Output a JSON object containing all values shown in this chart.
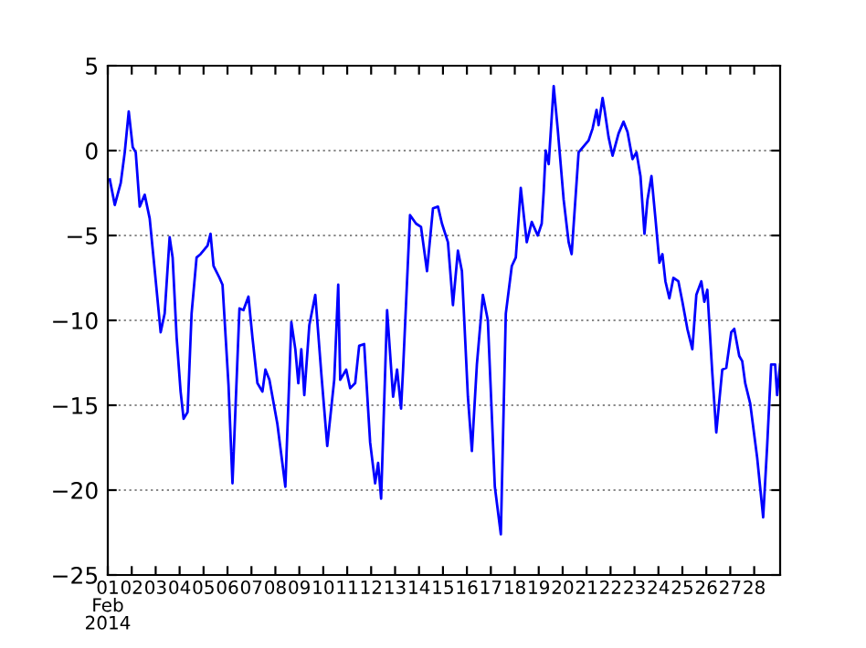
{
  "chart_data": {
    "type": "line",
    "x": [
      "2014-02-01T02:00",
      "2014-02-01T07:00",
      "2014-02-01T13:00",
      "2014-02-01T17:00",
      "2014-02-01T21:00",
      "2014-02-02T01:00",
      "2014-02-02T04:00",
      "2014-02-02T08:00",
      "2014-02-02T13:00",
      "2014-02-02T18:00",
      "2014-02-02T22:00",
      "2014-02-03T05:00",
      "2014-02-03T09:00",
      "2014-02-03T14:00",
      "2014-02-03T17:00",
      "2014-02-03T21:00",
      "2014-02-04T01:00",
      "2014-02-04T04:00",
      "2014-02-04T08:00",
      "2014-02-04T12:00",
      "2014-02-04T17:00",
      "2014-02-04T21:00",
      "2014-02-05T04:00",
      "2014-02-05T07:00",
      "2014-02-05T10:00",
      "2014-02-05T16:00",
      "2014-02-05T19:00",
      "2014-02-06T01:00",
      "2014-02-06T05:00",
      "2014-02-06T12:00",
      "2014-02-06T16:00",
      "2014-02-06T21:00",
      "2014-02-07T01:00",
      "2014-02-07T06:00",
      "2014-02-07T11:00",
      "2014-02-07T14:00",
      "2014-02-07T18:00",
      "2014-02-08T02:00",
      "2014-02-08T10:00",
      "2014-02-08T16:00",
      "2014-02-08T20:00",
      "2014-02-08T23:00",
      "2014-02-09T02:00",
      "2014-02-09T05:00",
      "2014-02-09T10:00",
      "2014-02-09T16:00",
      "2014-02-09T22:00",
      "2014-02-10T04:00",
      "2014-02-10T11:00",
      "2014-02-10T15:00",
      "2014-02-10T17:00",
      "2014-02-10T23:00",
      "2014-02-11T03:00",
      "2014-02-11T08:00",
      "2014-02-11T12:00",
      "2014-02-11T17:00",
      "2014-02-11T23:00",
      "2014-02-12T04:00",
      "2014-02-12T07:00",
      "2014-02-12T10:00",
      "2014-02-12T16:00",
      "2014-02-12T22:00",
      "2014-02-13T02:00",
      "2014-02-13T06:00",
      "2014-02-13T08:00",
      "2014-02-13T15:00",
      "2014-02-13T21:00",
      "2014-02-14T02:00",
      "2014-02-14T08:00",
      "2014-02-14T14:00",
      "2014-02-14T19:00",
      "2014-02-14T23:00",
      "2014-02-15T05:00",
      "2014-02-15T10:00",
      "2014-02-15T15:00",
      "2014-02-15T19:00",
      "2014-02-16T01:00",
      "2014-02-16T05:00",
      "2014-02-16T10:00",
      "2014-02-16T16:00",
      "2014-02-16T21:00",
      "2014-02-17T04:00",
      "2014-02-17T10:00",
      "2014-02-17T15:00",
      "2014-02-17T21:00",
      "2014-02-18T01:00",
      "2014-02-18T06:00",
      "2014-02-18T12:00",
      "2014-02-18T17:00",
      "2014-02-18T23:00",
      "2014-02-19T03:00",
      "2014-02-19T05:00",
      "2014-02-19T07:00",
      "2014-02-19T10:00",
      "2014-02-19T15:00",
      "2014-02-19T19:00",
      "2014-02-20T01:00",
      "2014-02-20T06:00",
      "2014-02-20T09:00",
      "2014-02-20T16:00",
      "2014-02-21T02:00",
      "2014-02-21T06:00",
      "2014-02-21T10:00",
      "2014-02-21T12:00",
      "2014-02-21T16:00",
      "2014-02-21T18:00",
      "2014-02-21T22:00",
      "2014-02-22T02:00",
      "2014-02-22T08:00",
      "2014-02-22T13:00",
      "2014-02-22T17:00",
      "2014-02-22T22:00",
      "2014-02-23T02:00",
      "2014-02-23T06:00",
      "2014-02-23T10:00",
      "2014-02-23T13:00",
      "2014-02-23T17:00",
      "2014-02-23T21:00",
      "2014-02-24T01:00",
      "2014-02-24T04:00",
      "2014-02-24T07:00",
      "2014-02-24T11:00",
      "2014-02-24T15:00",
      "2014-02-24T20:00",
      "2014-02-25T00:00",
      "2014-02-25T05:00",
      "2014-02-25T10:00",
      "2014-02-25T14:00",
      "2014-02-25T19:00",
      "2014-02-25T22:00",
      "2014-02-26T01:00",
      "2014-02-26T06:00",
      "2014-02-26T10:00",
      "2014-02-26T16:00",
      "2014-02-26T20:00",
      "2014-02-27T01:00",
      "2014-02-27T04:00",
      "2014-02-27T09:00",
      "2014-02-27T12:00",
      "2014-02-27T15:00",
      "2014-02-27T20:00",
      "2014-02-28T03:00",
      "2014-02-28T09:00",
      "2014-02-28T13:00",
      "2014-02-28T17:00",
      "2014-02-28T21:00",
      "2014-02-28T23:00",
      "2014-03-01T02:00"
    ],
    "series": [
      {
        "color": "#0000ff",
        "values": [
          -1.7,
          -3.2,
          -1.9,
          -0.1,
          2.3,
          0.2,
          -0.1,
          -3.3,
          -2.6,
          -4.0,
          -6.4,
          -10.7,
          -9.6,
          -5.1,
          -6.3,
          -11.0,
          -14.2,
          -15.8,
          -15.4,
          -9.6,
          -6.3,
          -6.1,
          -5.6,
          -4.9,
          -6.8,
          -7.5,
          -7.9,
          -13.8,
          -19.6,
          -9.3,
          -9.4,
          -8.6,
          -11.0,
          -13.7,
          -14.2,
          -12.9,
          -13.5,
          -16.1,
          -19.8,
          -10.1,
          -11.7,
          -13.7,
          -11.7,
          -14.4,
          -10.3,
          -8.5,
          -13.1,
          -17.4,
          -13.5,
          -7.9,
          -13.5,
          -12.9,
          -14.0,
          -13.7,
          -11.5,
          -11.4,
          -17.2,
          -19.6,
          -18.4,
          -20.5,
          -9.4,
          -14.5,
          -12.9,
          -15.2,
          -12.9,
          -3.8,
          -4.3,
          -4.5,
          -7.1,
          -3.4,
          -3.3,
          -4.3,
          -5.4,
          -9.1,
          -5.9,
          -7.1,
          -14.5,
          -17.7,
          -12.6,
          -8.5,
          -10.0,
          -19.8,
          -22.6,
          -9.6,
          -6.8,
          -6.3,
          -2.2,
          -5.4,
          -4.2,
          -5.0,
          -4.3,
          -2.4,
          0.0,
          -0.8,
          3.8,
          1.3,
          -2.9,
          -5.4,
          -6.1,
          -0.1,
          0.6,
          1.3,
          2.4,
          1.5,
          3.1,
          2.4,
          0.8,
          -0.3,
          1.0,
          1.7,
          1.1,
          -0.5,
          -0.1,
          -1.5,
          -4.9,
          -2.9,
          -1.5,
          -4.0,
          -6.6,
          -6.1,
          -7.7,
          -8.7,
          -7.5,
          -7.7,
          -8.9,
          -10.5,
          -11.7,
          -8.5,
          -7.7,
          -8.9,
          -8.2,
          -13.1,
          -16.6,
          -12.9,
          -12.8,
          -10.7,
          -10.5,
          -12.1,
          -12.4,
          -13.7,
          -14.9,
          -18.1,
          -21.6,
          -17.4,
          -12.6,
          -12.6,
          -14.4,
          -12.6
        ]
      }
    ],
    "xlim": [
      "2014-02-01",
      "2014-03-01T02:00"
    ],
    "xticks": [
      {
        "value": "2014-02-01",
        "label": "01\nFeb\n2014"
      },
      {
        "value": "2014-02-02",
        "label": "02"
      },
      {
        "value": "2014-02-03",
        "label": "03"
      },
      {
        "value": "2014-02-04",
        "label": "04"
      },
      {
        "value": "2014-02-05",
        "label": "05"
      },
      {
        "value": "2014-02-06",
        "label": "06"
      },
      {
        "value": "2014-02-07",
        "label": "07"
      },
      {
        "value": "2014-02-08",
        "label": "08"
      },
      {
        "value": "2014-02-09",
        "label": "09"
      },
      {
        "value": "2014-02-10",
        "label": "10"
      },
      {
        "value": "2014-02-11",
        "label": "11"
      },
      {
        "value": "2014-02-12",
        "label": "12"
      },
      {
        "value": "2014-02-13",
        "label": "13"
      },
      {
        "value": "2014-02-14",
        "label": "14"
      },
      {
        "value": "2014-02-15",
        "label": "15"
      },
      {
        "value": "2014-02-16",
        "label": "16"
      },
      {
        "value": "2014-02-17",
        "label": "17"
      },
      {
        "value": "2014-02-18",
        "label": "18"
      },
      {
        "value": "2014-02-19",
        "label": "19"
      },
      {
        "value": "2014-02-20",
        "label": "20"
      },
      {
        "value": "2014-02-21",
        "label": "21"
      },
      {
        "value": "2014-02-22",
        "label": "22"
      },
      {
        "value": "2014-02-23",
        "label": "23"
      },
      {
        "value": "2014-02-24",
        "label": "24"
      },
      {
        "value": "2014-02-25",
        "label": "25"
      },
      {
        "value": "2014-02-26",
        "label": "26"
      },
      {
        "value": "2014-02-27",
        "label": "27"
      },
      {
        "value": "2014-02-28",
        "label": "28"
      }
    ],
    "ylim": [
      -25,
      5
    ],
    "yticks": [
      -25,
      -20,
      -15,
      -10,
      -5,
      0,
      5
    ],
    "grid": "y"
  }
}
